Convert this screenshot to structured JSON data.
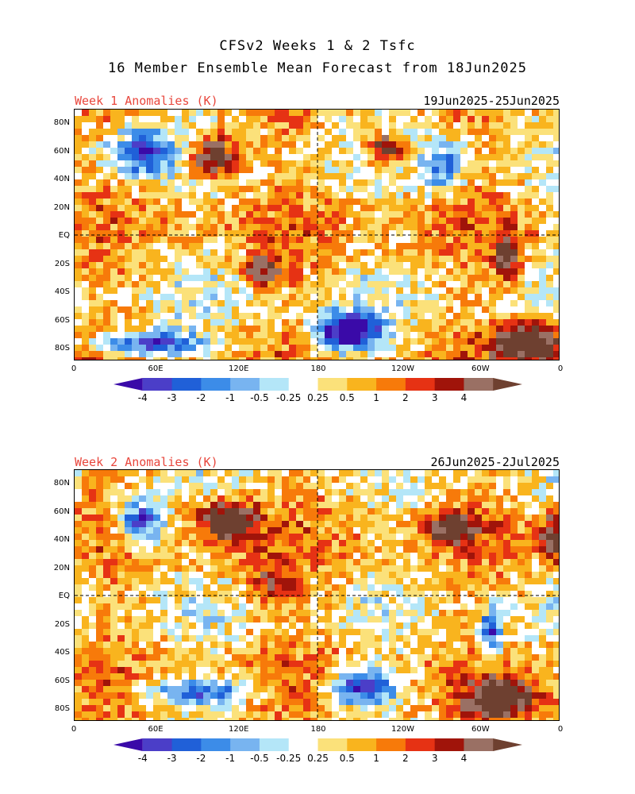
{
  "title": {
    "line1": "CFSv2 Weeks 1 & 2 Tsfc",
    "line2": "16 Member Ensemble Mean Forecast from 18Jun2025"
  },
  "panels": [
    {
      "label": "Week 1 Anomalies (K)",
      "dates": "19Jun2025-25Jun2025"
    },
    {
      "label": "Week 2 Anomalies (K)",
      "dates": "26Jun2025-2Jul2025"
    }
  ],
  "axes": {
    "lat_labels": [
      "80N",
      "60N",
      "40N",
      "20N",
      "EQ",
      "20S",
      "40S",
      "60S",
      "80S"
    ],
    "lon_labels": [
      "0",
      "60E",
      "120E",
      "180",
      "120W",
      "60W",
      "0"
    ]
  },
  "colorbar": {
    "tick_labels": [
      "-4",
      "-3",
      "-2",
      "-1",
      "-0.5",
      "-0.25",
      "0.25",
      "0.5",
      "1",
      "2",
      "3",
      "4"
    ],
    "colors": [
      "#3a0aa8",
      "#4b3ec8",
      "#2060d8",
      "#3c8ce8",
      "#78b4f0",
      "#b4e6f8",
      "#ffffff",
      "#fbe17a",
      "#f9b41e",
      "#f77a0a",
      "#e63214",
      "#a0140a",
      "#9a7064",
      "#6e4030"
    ]
  },
  "colors": {
    "title_red": "#e8463c",
    "dashed_lines": "#000000"
  }
}
